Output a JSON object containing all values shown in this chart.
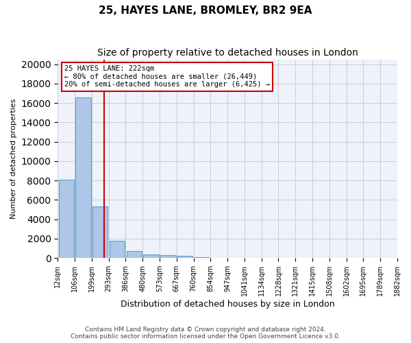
{
  "title": "25, HAYES LANE, BROMLEY, BR2 9EA",
  "subtitle": "Size of property relative to detached houses in London",
  "xlabel": "Distribution of detached houses by size in London",
  "ylabel": "Number of detached properties",
  "bar_color": "#aec6e8",
  "bar_edge_color": "#5a9fd4",
  "background_color": "#eef2fa",
  "grid_color": "#cccccc",
  "bin_labels": [
    "12sqm",
    "106sqm",
    "199sqm",
    "293sqm",
    "386sqm",
    "480sqm",
    "573sqm",
    "667sqm",
    "760sqm",
    "854sqm",
    "947sqm",
    "1041sqm",
    "1134sqm",
    "1228sqm",
    "1321sqm",
    "1415sqm",
    "1508sqm",
    "1602sqm",
    "1695sqm",
    "1789sqm",
    "1882sqm"
  ],
  "bar_heights": [
    8100,
    16600,
    5300,
    1800,
    700,
    400,
    300,
    200,
    100,
    50,
    50,
    50,
    20,
    20,
    10,
    5,
    5,
    5,
    3,
    3
  ],
  "annotation_line1": "25 HAYES LANE: 222sqm",
  "annotation_line2": "← 80% of detached houses are smaller (26,449)",
  "annotation_line3": "20% of semi-detached houses are larger (6,425) →",
  "vline_color": "#cc0000",
  "ylim": [
    0,
    20500
  ],
  "yticks": [
    0,
    2000,
    4000,
    6000,
    8000,
    10000,
    12000,
    14000,
    16000,
    18000,
    20000
  ],
  "footer_line1": "Contains HM Land Registry data © Crown copyright and database right 2024.",
  "footer_line2": "Contains public sector information licensed under the Open Government Licence v3.0."
}
